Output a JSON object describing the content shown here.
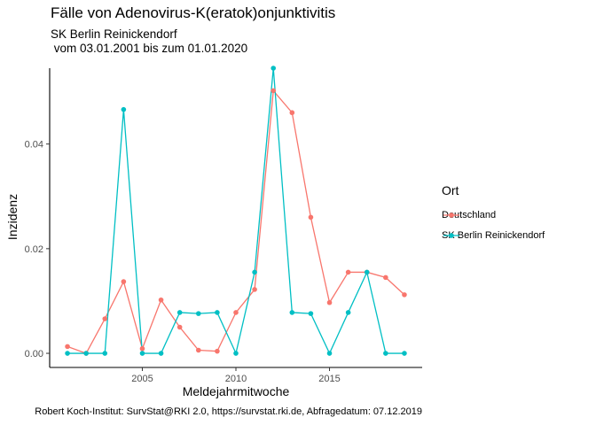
{
  "title": "Fälle von Adenovirus-K(eratok)onjunktivitis",
  "subtitle": "SK Berlin Reinickendorf\n vom 03.01.2001 bis zum 01.01.2020",
  "caption": "Robert Koch-Institut: SurvStat@RKI 2.0, https://survstat.rki.de, Abfragedatum: 07.12.2019",
  "legend": {
    "title": "Ort"
  },
  "chart_data": {
    "type": "line",
    "xlabel": "Meldejahrmitwoche",
    "ylabel": "Inzidenz",
    "xlim": [
      2000.05,
      2019.95
    ],
    "ylim": [
      -0.0027,
      0.0545
    ],
    "x_ticks": [
      2005,
      2010,
      2015
    ],
    "x_tick_labels": [
      "2005",
      "2010",
      "2015"
    ],
    "y_ticks": [
      0.0,
      0.02,
      0.04
    ],
    "y_tick_labels": [
      "0.00",
      "0.02",
      "0.04"
    ],
    "grid": false,
    "legend_position": "right",
    "x": [
      2001,
      2002,
      2003,
      2004,
      2005,
      2006,
      2007,
      2008,
      2009,
      2010,
      2011,
      2012,
      2013,
      2014,
      2015,
      2016,
      2017,
      2018,
      2019
    ],
    "series": [
      {
        "name": "Deutschland",
        "color": "#F8766D",
        "values": [
          0.0013,
          0.0,
          0.0066,
          0.0137,
          0.0009,
          0.0102,
          0.005,
          0.0006,
          0.0004,
          0.0078,
          0.0122,
          0.0502,
          0.046,
          0.026,
          0.0097,
          0.0155,
          0.0155,
          0.0145,
          0.0112
        ]
      },
      {
        "name": "SK Berlin Reinickendorf",
        "color": "#00BFC4",
        "values": [
          0.0,
          0.0,
          0.0,
          0.0466,
          0.0,
          0.0,
          0.0078,
          0.0076,
          0.0078,
          0.0,
          0.0155,
          0.0545,
          0.0078,
          0.0076,
          0.0,
          0.0078,
          0.0155,
          0.0,
          0.0
        ]
      }
    ]
  }
}
